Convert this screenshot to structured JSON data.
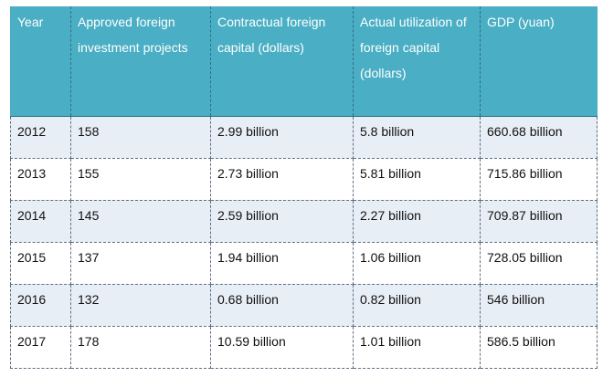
{
  "table": {
    "headers": [
      "Year",
      "Approved foreign investment projects",
      "Contractual foreign capital (dollars)",
      "Actual utilization of foreign capital (dollars)",
      "GDP (yuan)"
    ],
    "rows": [
      [
        "2012",
        "158",
        "2.99 billion",
        "5.8 billion",
        "660.68 billion"
      ],
      [
        "2013",
        "155",
        "2.73 billion",
        "5.81 billion",
        "715.86 billion"
      ],
      [
        "2014",
        "145",
        "2.59 billion",
        "2.27 billion",
        "709.87 billion"
      ],
      [
        "2015",
        "137",
        "1.94 billion",
        "1.06 billion",
        "728.05 billion"
      ],
      [
        "2016",
        "132",
        "0.68 billion",
        "0.82 billion",
        "546 billion"
      ],
      [
        "2017",
        "178",
        "10.59 billion",
        "1.01 billion",
        "586.5 billion"
      ]
    ]
  },
  "colors": {
    "header_bg": "#4aaec4",
    "row_alt_bg": "#e8eef6",
    "row_plain_bg": "#ffffff"
  }
}
